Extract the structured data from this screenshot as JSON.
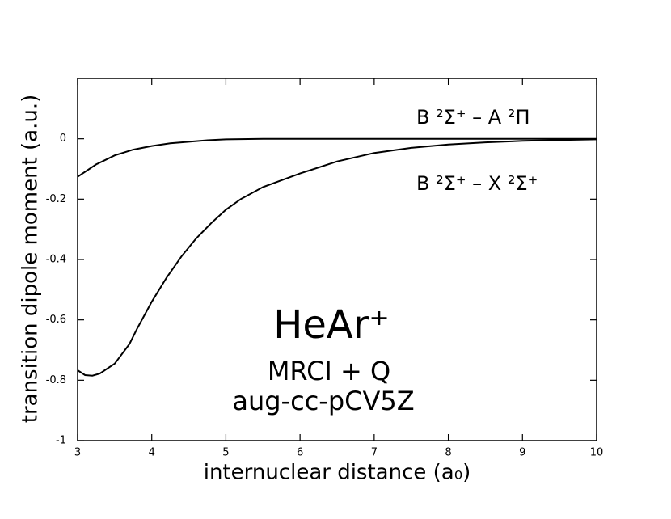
{
  "chart_data": {
    "type": "line",
    "xlabel": "internuclear distance (a₀)",
    "ylabel": "transition dipole moment  (a.u.)",
    "annotations": [
      "B ²Σ⁺ – A ²Π",
      "B ²Σ⁺ – X ²Σ⁺",
      "HeAr⁺",
      "MRCI + Q",
      "aug-cc-pCV5Z"
    ],
    "xlim": [
      3,
      10
    ],
    "xticks": [
      3,
      4,
      5,
      6,
      7,
      8,
      9,
      10
    ],
    "ylim": [
      -1,
      0.2
    ],
    "yticks": [
      -1,
      -0.8,
      -0.6,
      -0.4,
      -0.2,
      0
    ],
    "series": [
      {
        "color": "#000000",
        "x": [
          3,
          3.25,
          3.5,
          3.75,
          4,
          4.25,
          4.5,
          4.75,
          5,
          5.5,
          6,
          7,
          8,
          9,
          10
        ],
        "values": [
          -0.126,
          -0.085,
          -0.055,
          -0.036,
          -0.024,
          -0.015,
          -0.01,
          -0.005,
          -0.002,
          0,
          0,
          0,
          0,
          0,
          0
        ]
      },
      {
        "color": "#000000",
        "x": [
          3,
          3.1,
          3.2,
          3.3,
          3.5,
          3.7,
          3.8,
          4,
          4.2,
          4.4,
          4.6,
          4.8,
          5,
          5.2,
          5.5,
          6,
          6.5,
          7,
          7.5,
          8,
          8.5,
          9,
          9.5,
          10
        ],
        "values": [
          -0.767,
          -0.783,
          -0.785,
          -0.778,
          -0.745,
          -0.68,
          -0.63,
          -0.54,
          -0.46,
          -0.39,
          -0.33,
          -0.28,
          -0.235,
          -0.2,
          -0.16,
          -0.115,
          -0.075,
          -0.047,
          -0.03,
          -0.019,
          -0.012,
          -0.007,
          -0.004,
          -0.002
        ]
      }
    ]
  }
}
